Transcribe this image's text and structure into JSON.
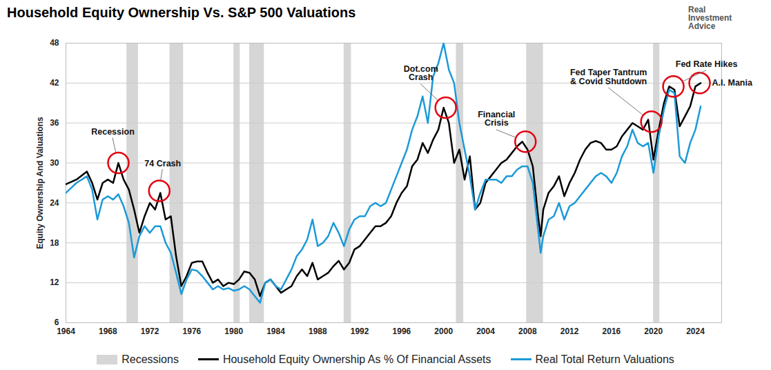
{
  "chart_data": {
    "type": "line",
    "title": "Household Equity Ownership Vs. S&P 500 Valuations",
    "source": "Real Investment Advice",
    "ylabel": "Equity Ownership And Valuations",
    "legend": "bottom",
    "grid": true,
    "xlim": [
      1964,
      2026.5
    ],
    "xticks": [
      1964,
      1968,
      1972,
      1976,
      1980,
      1984,
      1988,
      1992,
      1996,
      2000,
      2004,
      2008,
      2012,
      2016,
      2020,
      2024
    ],
    "ylim": [
      6,
      48
    ],
    "yticks": [
      6,
      12,
      18,
      24,
      30,
      36,
      42,
      48
    ],
    "x": [
      1964,
      1965,
      1966,
      1966.5,
      1967,
      1967.5,
      1968,
      1968.5,
      1969,
      1969.5,
      1970,
      1970.5,
      1971,
      1971.5,
      1972,
      1972.5,
      1973,
      1973.5,
      1974,
      1974.5,
      1975,
      1975.5,
      1976,
      1976.5,
      1977,
      1977.5,
      1978,
      1978.5,
      1979,
      1979.5,
      1980,
      1980.5,
      1981,
      1981.5,
      1982,
      1982.5,
      1983,
      1983.5,
      1984,
      1984.5,
      1985,
      1985.5,
      1986,
      1986.5,
      1987,
      1987.5,
      1988,
      1988.5,
      1989,
      1989.5,
      1990,
      1990.5,
      1991,
      1991.5,
      1992,
      1992.5,
      1993,
      1993.5,
      1994,
      1994.5,
      1995,
      1995.5,
      1996,
      1996.5,
      1997,
      1997.5,
      1998,
      1998.5,
      1999,
      1999.5,
      2000,
      2000.5,
      2001,
      2001.5,
      2002,
      2002.5,
      2003,
      2003.5,
      2004,
      2004.5,
      2005,
      2005.5,
      2006,
      2006.5,
      2007,
      2007.5,
      2008,
      2008.5,
      2009,
      2009.25,
      2009.5,
      2010,
      2010.5,
      2011,
      2011.5,
      2012,
      2012.5,
      2013,
      2013.5,
      2014,
      2014.5,
      2015,
      2015.5,
      2016,
      2016.5,
      2017,
      2017.5,
      2018,
      2018.5,
      2019,
      2019.5,
      2020,
      2020.5,
      2021,
      2021.5,
      2022,
      2022.5,
      2023,
      2023.5,
      2024,
      2024.5
    ],
    "series": [
      {
        "name": "Household Equity Ownership As % Of Financial Assets",
        "color": "#000000",
        "values": [
          26.8,
          27.5,
          28.7,
          27,
          24.5,
          27,
          27.5,
          27,
          30,
          27.5,
          26,
          23,
          19.5,
          22,
          24,
          23,
          25.5,
          21.5,
          22,
          16,
          11.5,
          13,
          15,
          15.2,
          15.2,
          13.5,
          12,
          12.5,
          11.5,
          12,
          11.8,
          12.5,
          13.7,
          13.5,
          12.5,
          10,
          12,
          12.5,
          11.5,
          10.5,
          11,
          11.5,
          13,
          14,
          13,
          15,
          12.5,
          13,
          13.5,
          14.5,
          15.3,
          14,
          15,
          17,
          17.5,
          18.5,
          19.5,
          20.5,
          20.5,
          21,
          22,
          24,
          25.5,
          26.5,
          29.5,
          30.5,
          33,
          31.5,
          33.5,
          35,
          38.3,
          36,
          30,
          32,
          27.5,
          31,
          23,
          24,
          27,
          28,
          29,
          30,
          30.5,
          31.5,
          32.5,
          33.2,
          32,
          29.5,
          22,
          19,
          23,
          25.5,
          26.5,
          28,
          25,
          27,
          28.5,
          30.5,
          32,
          33,
          33.3,
          33,
          32,
          32,
          32.5,
          34,
          35,
          36,
          35.5,
          35,
          36.5,
          30.5,
          35,
          39,
          41.5,
          41,
          35.5,
          37,
          38.5,
          41.5,
          42
        ]
      },
      {
        "name": "Real Total Return Valuations",
        "color": "#1b9ad8",
        "values": [
          25.5,
          27,
          28,
          26,
          21.5,
          24.5,
          25,
          24.5,
          25.3,
          23.5,
          21,
          15.8,
          19,
          20.5,
          19.5,
          20.5,
          20.5,
          18,
          16.5,
          13.5,
          10.3,
          12.5,
          14,
          13.8,
          13,
          12,
          11,
          11.5,
          11,
          11.2,
          10.8,
          11,
          11.5,
          11,
          10,
          9,
          12,
          12.5,
          11.5,
          11,
          12.5,
          14,
          16,
          17,
          18.5,
          21.5,
          17.5,
          18,
          19,
          21,
          19.5,
          17.5,
          20,
          21.5,
          22,
          22,
          23.5,
          24,
          23.5,
          24,
          26,
          28,
          30,
          32,
          35,
          37,
          40,
          36,
          43,
          45,
          48,
          44,
          42,
          36,
          32,
          28,
          23,
          25.5,
          27.5,
          27.5,
          27.5,
          27,
          28,
          28,
          29,
          29.5,
          29.5,
          27,
          20,
          16.5,
          19,
          21.5,
          22,
          24,
          21.5,
          23.5,
          24,
          25,
          26,
          27,
          28,
          28.5,
          28,
          27,
          28.5,
          31,
          32.5,
          35,
          33,
          32.5,
          33,
          28.5,
          34,
          38,
          41,
          40.5,
          31,
          30,
          33,
          35,
          38.5
        ]
      }
    ],
    "recessions": {
      "name": "Recessions",
      "color": "#d6d6d6",
      "periods": [
        [
          1969.8,
          1970.9
        ],
        [
          1973.9,
          1975.2
        ],
        [
          1980.0,
          1980.6
        ],
        [
          1981.5,
          1982.9
        ],
        [
          1990.5,
          1991.2
        ],
        [
          2001.2,
          2001.9
        ],
        [
          2007.9,
          2009.5
        ],
        [
          2020.0,
          2020.6
        ]
      ]
    },
    "annotations": [
      {
        "text": "Recession",
        "x": 1969,
        "y": 30
      },
      {
        "text": "74 Crash",
        "x": 1972.9,
        "y": 25.8
      },
      {
        "text": "Dot.com\nCrash",
        "x": 2000.2,
        "y": 38.3
      },
      {
        "text": "Financial\nCrisis",
        "x": 2007.8,
        "y": 33.2
      },
      {
        "text": "Fed Taper Tantrum\n& Covid Shutdown",
        "x": 2019.8,
        "y": 36.2
      },
      {
        "text": "Fed Rate Hikes",
        "x": 2021.9,
        "y": 41.5
      },
      {
        "text": "A.I. Mania",
        "x": 2024.4,
        "y": 42
      }
    ]
  }
}
